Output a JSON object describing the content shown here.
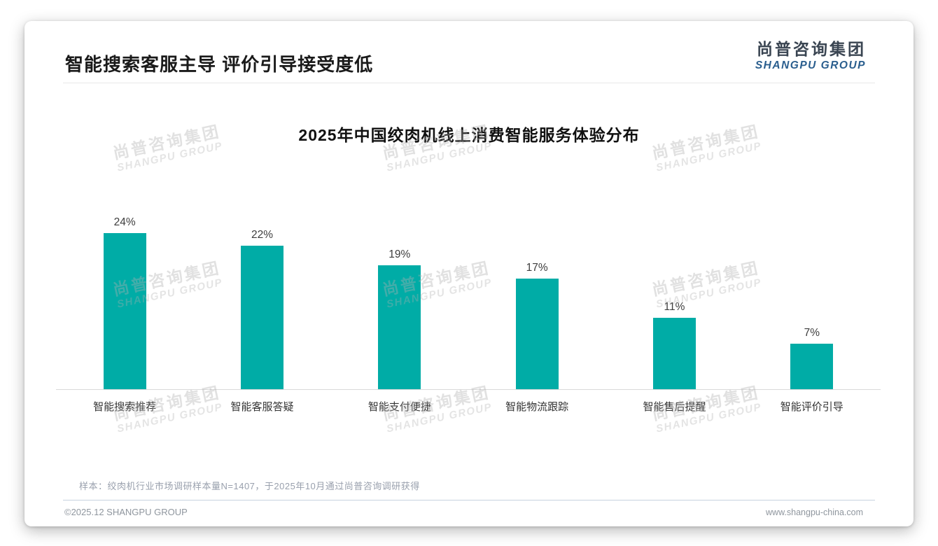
{
  "page": {
    "title": "智能搜索客服主导 评价引导接受度低",
    "logo": {
      "cn": "尚普咨询集团",
      "en": "SHANGPU GROUP"
    },
    "watermark": {
      "cn": "尚普咨询集团",
      "en": "SHANGPU GROUP"
    },
    "footnote": "样本：绞肉机行业市场调研样本量N=1407，于2025年10月通过尚普咨询调研获得",
    "footer": {
      "left": "©2025.12 SHANGPU GROUP",
      "right": "www.shangpu-china.com"
    }
  },
  "chart_data": {
    "type": "bar",
    "title": "2025年中国绞肉机线上消费智能服务体验分布",
    "categories": [
      "智能搜索推荐",
      "智能客服答疑",
      "智能支付便捷",
      "智能物流跟踪",
      "智能售后提醒",
      "智能评价引导"
    ],
    "values": [
      24,
      22,
      19,
      17,
      11,
      7
    ],
    "value_labels": [
      "24%",
      "22%",
      "19%",
      "17%",
      "11%",
      "7%"
    ],
    "unit": "%",
    "bar_color": "#00ACA6",
    "ylim": [
      0,
      26
    ],
    "grid": false,
    "legend": null,
    "value_labels_position": "above-bar"
  }
}
